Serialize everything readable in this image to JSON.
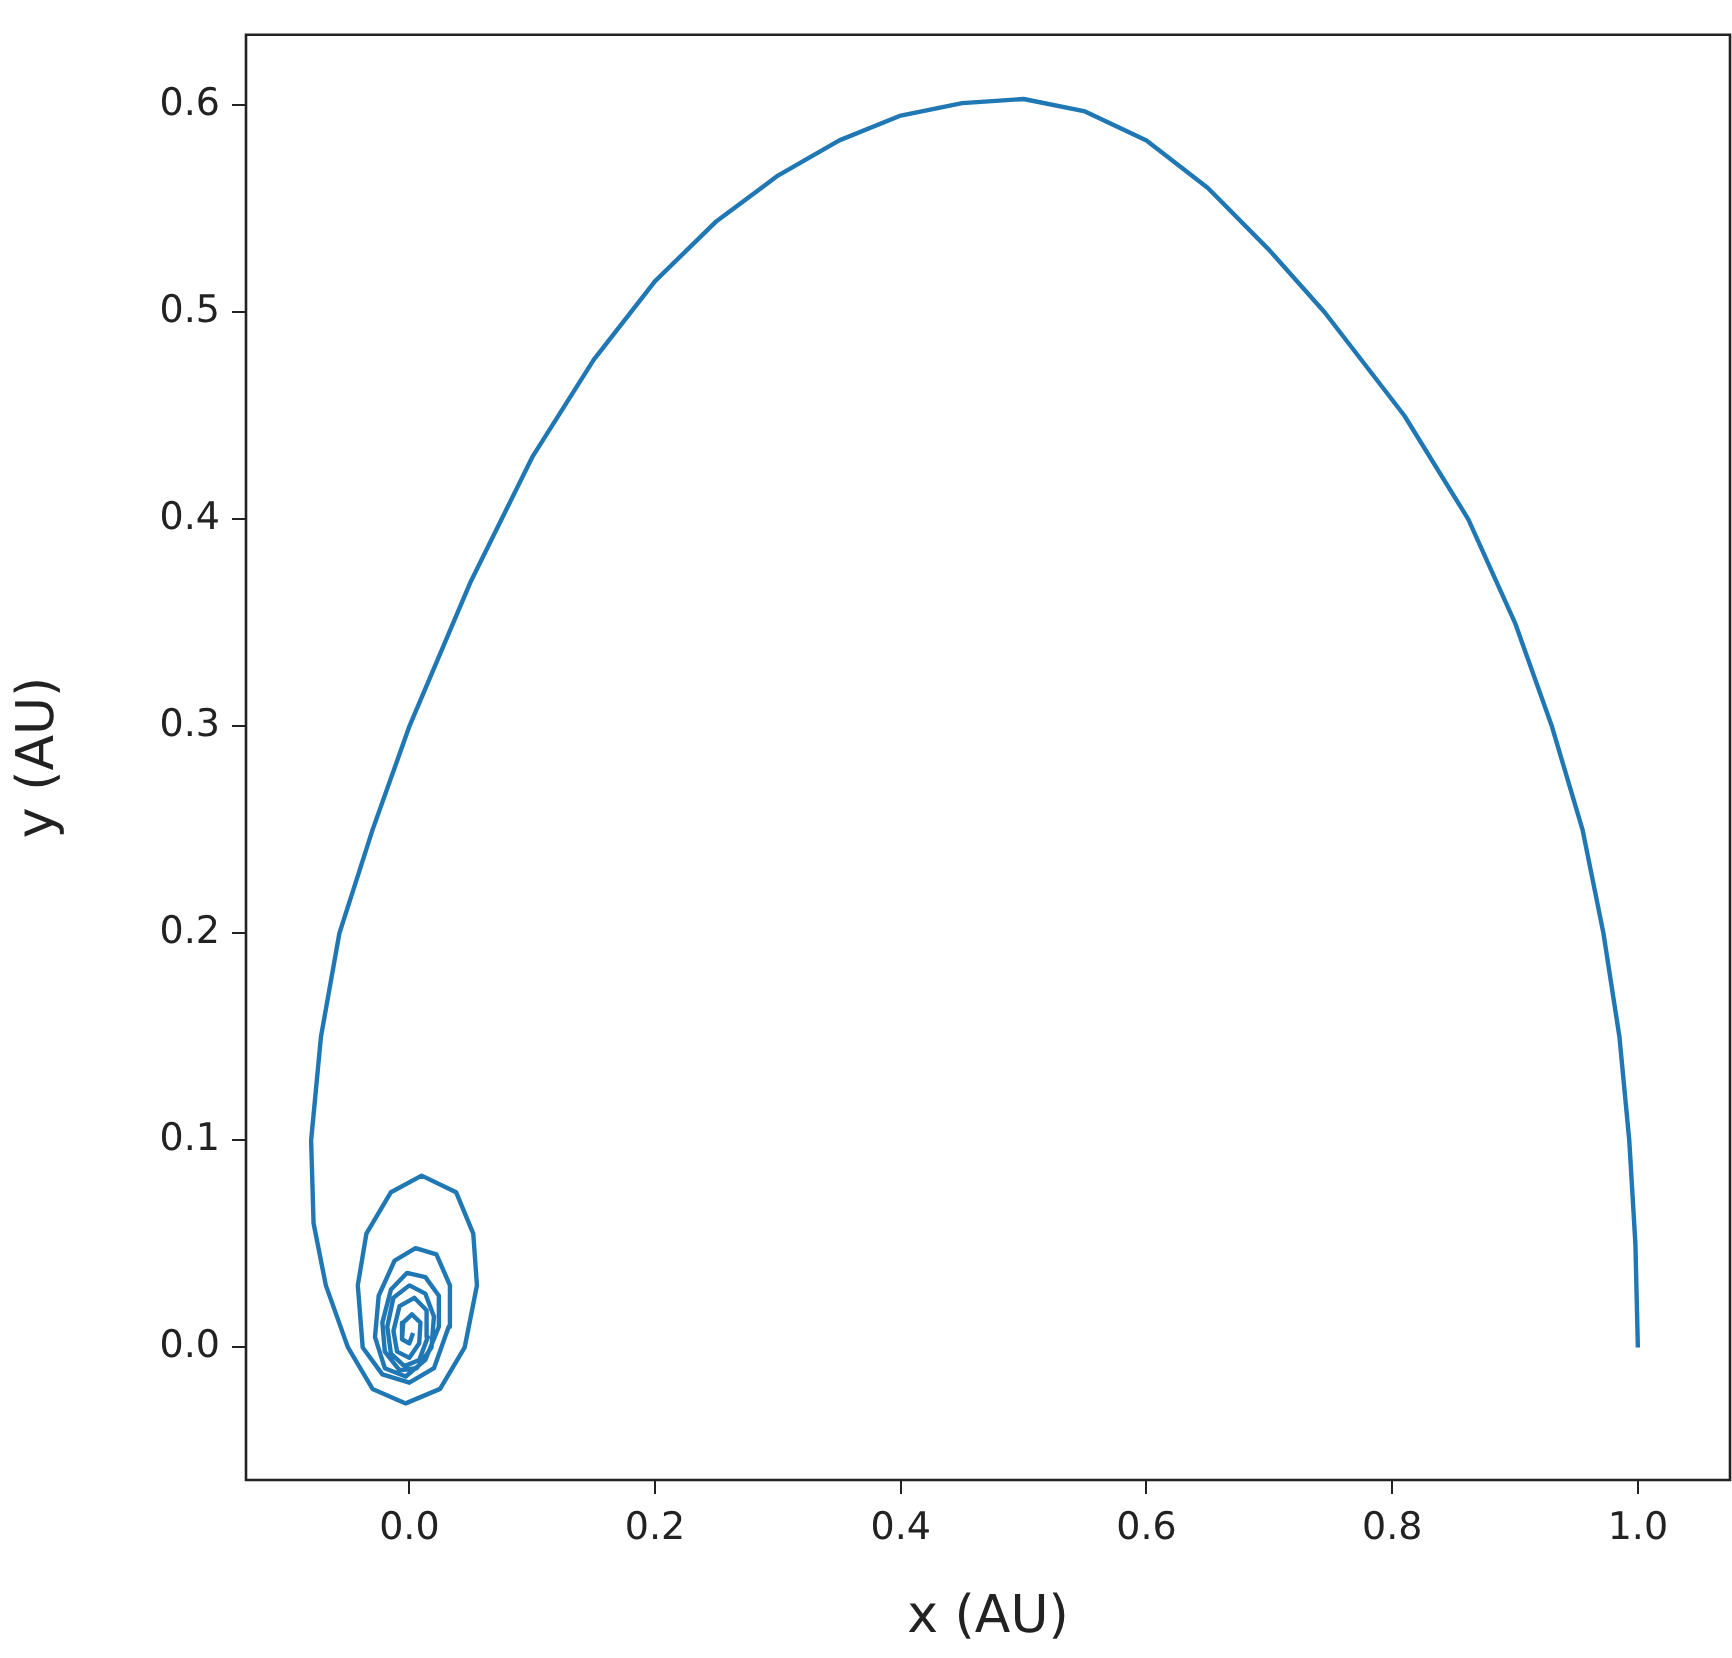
{
  "chart_data": {
    "type": "line",
    "xlabel": "x (AU)",
    "ylabel": "y (AU)",
    "color": "#1f77b4",
    "x": [
      1.0,
      0.998,
      0.993,
      0.985,
      0.972,
      0.955,
      0.93,
      0.9,
      0.862,
      0.81,
      0.745,
      0.7,
      0.65,
      0.6,
      0.55,
      0.5,
      0.45,
      0.4,
      0.35,
      0.3,
      0.25,
      0.2,
      0.15,
      0.1,
      0.05,
      0.0,
      -0.03,
      -0.057,
      -0.072,
      -0.08,
      -0.078,
      -0.068,
      -0.05,
      -0.03,
      -0.003,
      0.025,
      0.045,
      0.055,
      0.052,
      0.038,
      0.01,
      -0.015,
      -0.035,
      -0.042,
      -0.038,
      -0.022,
      0.0,
      0.02,
      0.032,
      0.033,
      0.022,
      0.005,
      -0.012,
      -0.025,
      -0.028,
      -0.02,
      -0.003,
      0.013,
      0.024,
      0.024,
      0.013,
      -0.002,
      -0.015,
      -0.022,
      -0.02,
      -0.008,
      0.006,
      0.018,
      0.02,
      0.013,
      0.0,
      -0.013,
      -0.018,
      -0.015,
      -0.004,
      0.008,
      0.015,
      0.014,
      0.004,
      -0.008,
      -0.013,
      -0.01,
      0.0,
      0.008,
      0.009,
      0.002,
      -0.005,
      -0.006,
      0.0,
      0.003
    ],
    "values": [
      0.0,
      0.05,
      0.1,
      0.15,
      0.2,
      0.25,
      0.3,
      0.35,
      0.4,
      0.45,
      0.5,
      0.53,
      0.56,
      0.583,
      0.597,
      0.603,
      0.601,
      0.595,
      0.583,
      0.566,
      0.544,
      0.515,
      0.477,
      0.43,
      0.37,
      0.3,
      0.25,
      0.2,
      0.15,
      0.1,
      0.06,
      0.03,
      0.0,
      -0.02,
      -0.027,
      -0.02,
      0.0,
      0.03,
      0.055,
      0.075,
      0.083,
      0.075,
      0.055,
      0.03,
      0.0,
      -0.013,
      -0.017,
      -0.01,
      0.01,
      0.03,
      0.045,
      0.048,
      0.042,
      0.025,
      0.005,
      -0.01,
      -0.014,
      -0.006,
      0.01,
      0.025,
      0.034,
      0.036,
      0.028,
      0.012,
      -0.002,
      -0.011,
      -0.01,
      0.0,
      0.015,
      0.026,
      0.03,
      0.024,
      0.01,
      -0.003,
      -0.009,
      -0.006,
      0.005,
      0.018,
      0.024,
      0.02,
      0.008,
      -0.002,
      -0.005,
      0.002,
      0.012,
      0.016,
      0.012,
      0.004,
      0.002,
      0.007
    ],
    "xlim": [
      -0.133,
      1.075
    ],
    "ylim": [
      -0.064,
      0.634
    ],
    "xticks": [
      {
        "value": 0,
        "label": "0.0"
      },
      {
        "value": 0.2,
        "label": "0.2"
      },
      {
        "value": 0.4,
        "label": "0.4"
      },
      {
        "value": 0.6,
        "label": "0.6"
      },
      {
        "value": 0.8,
        "label": "0.8"
      },
      {
        "value": 1.0,
        "label": "1.0"
      }
    ],
    "yticks": [
      {
        "value": 0,
        "label": "0.0"
      },
      {
        "value": 0.1,
        "label": "0.1"
      },
      {
        "value": 0.2,
        "label": "0.2"
      },
      {
        "value": 0.3,
        "label": "0.3"
      },
      {
        "value": 0.4,
        "label": "0.4"
      },
      {
        "value": 0.5,
        "label": "0.5"
      },
      {
        "value": 0.6,
        "label": "0.6"
      }
    ]
  }
}
